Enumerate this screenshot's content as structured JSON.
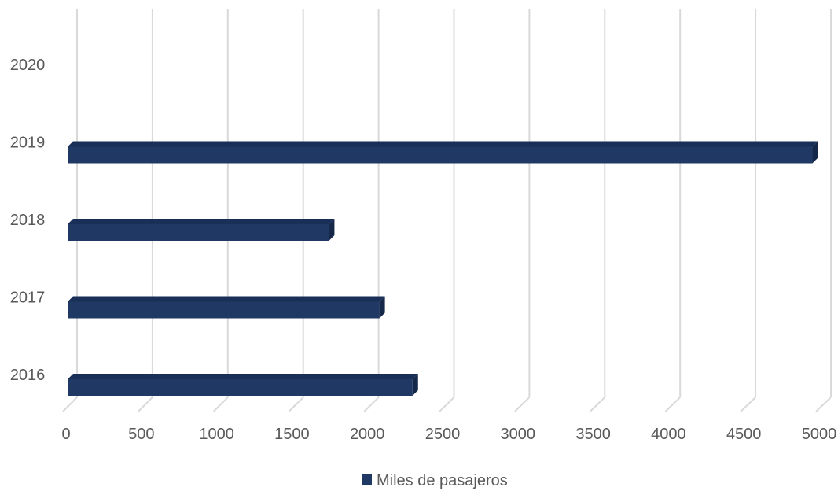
{
  "chart_data": {
    "type": "bar",
    "orientation": "horizontal",
    "style": "3d",
    "categories": [
      "2016",
      "2017",
      "2018",
      "2019",
      "2020"
    ],
    "series": [
      {
        "name": "Miles de pasajeros",
        "values": [
          2290,
          2070,
          1735,
          4945,
          0
        ],
        "color": "#1f3864"
      }
    ],
    "xlim": [
      0,
      5000
    ],
    "x_ticks": [
      "0",
      "500",
      "1000",
      "1500",
      "2000",
      "2500",
      "3000",
      "3500",
      "4000",
      "4500",
      "5000"
    ],
    "grid": "vertical",
    "legend": {
      "position": "bottom"
    },
    "title": "",
    "xlabel": "",
    "ylabel": ""
  }
}
